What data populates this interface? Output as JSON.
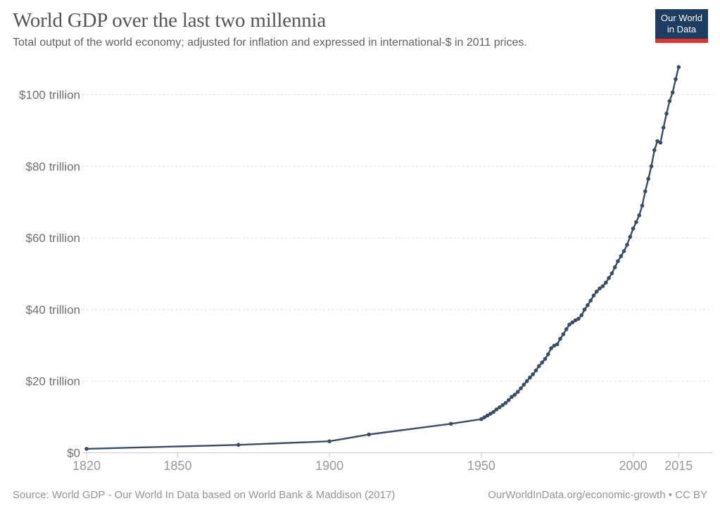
{
  "header": {
    "title": "World GDP over the last two millennia",
    "subtitle": "Total output of the world economy; adjusted for inflation and expressed in international-$ in 2011 prices."
  },
  "logo": {
    "line1": "Our World",
    "line2": "in Data",
    "bg_color": "#1d3d63",
    "bar_color": "#dc352b"
  },
  "footer": {
    "source": "Source: World GDP - Our World In Data based on World Bank & Maddison (2017)",
    "url_label": "OurWorldInData.org/economic-growth",
    "separator": "•",
    "license": "CC BY"
  },
  "chart_data": {
    "type": "line",
    "title": "World GDP over the last two millennia",
    "xlabel": "",
    "ylabel": "",
    "unit": "trillion international-$ in 2011 prices",
    "xlim": [
      1820,
      2015
    ],
    "ylim": [
      0,
      108
    ],
    "grid": "horizontal-dashed",
    "legend": "none",
    "colors": {
      "line": "#3b4c63",
      "gridline": "#dddddd",
      "axis": "#cccccc",
      "y_label": "#707070",
      "x_label": "#999999"
    },
    "x_ticks": [
      {
        "v": 1820,
        "label": "1820"
      },
      {
        "v": 1850,
        "label": "1850"
      },
      {
        "v": 1900,
        "label": "1900"
      },
      {
        "v": 1950,
        "label": "1950"
      },
      {
        "v": 2000,
        "label": "2000"
      },
      {
        "v": 2015,
        "label": "2015"
      }
    ],
    "y_ticks": [
      {
        "v": 0,
        "label": "$0"
      },
      {
        "v": 20,
        "label": "$20 trillion"
      },
      {
        "v": 40,
        "label": "$40 trillion"
      },
      {
        "v": 60,
        "label": "$60 trillion"
      },
      {
        "v": 80,
        "label": "$80 trillion"
      },
      {
        "v": 100,
        "label": "$100 trillion"
      }
    ],
    "series": [
      {
        "name": "World GDP",
        "points": [
          [
            1820,
            1.1
          ],
          [
            1870,
            2.2
          ],
          [
            1900,
            3.2
          ],
          [
            1913,
            5.1
          ],
          [
            1940,
            8.1
          ],
          [
            1950,
            9.4
          ],
          [
            1951,
            9.9
          ],
          [
            1952,
            10.4
          ],
          [
            1953,
            10.9
          ],
          [
            1954,
            11.4
          ],
          [
            1955,
            12.1
          ],
          [
            1956,
            12.7
          ],
          [
            1957,
            13.3
          ],
          [
            1958,
            13.9
          ],
          [
            1959,
            14.7
          ],
          [
            1960,
            15.6
          ],
          [
            1961,
            16.2
          ],
          [
            1962,
            17.0
          ],
          [
            1963,
            18.0
          ],
          [
            1964,
            19.0
          ],
          [
            1965,
            20.0
          ],
          [
            1966,
            21.0
          ],
          [
            1967,
            21.9
          ],
          [
            1968,
            23.0
          ],
          [
            1969,
            24.2
          ],
          [
            1970,
            25.2
          ],
          [
            1971,
            26.2
          ],
          [
            1972,
            27.5
          ],
          [
            1973,
            29.2
          ],
          [
            1974,
            29.9
          ],
          [
            1975,
            30.3
          ],
          [
            1976,
            31.8
          ],
          [
            1977,
            33.1
          ],
          [
            1978,
            34.5
          ],
          [
            1979,
            35.8
          ],
          [
            1980,
            36.4
          ],
          [
            1981,
            37.0
          ],
          [
            1982,
            37.4
          ],
          [
            1983,
            38.4
          ],
          [
            1984,
            40.0
          ],
          [
            1985,
            41.2
          ],
          [
            1986,
            42.5
          ],
          [
            1987,
            43.9
          ],
          [
            1988,
            45.0
          ],
          [
            1989,
            45.9
          ],
          [
            1990,
            46.5
          ],
          [
            1991,
            47.5
          ],
          [
            1992,
            48.8
          ],
          [
            1993,
            50.1
          ],
          [
            1994,
            51.8
          ],
          [
            1995,
            53.5
          ],
          [
            1996,
            54.9
          ],
          [
            1997,
            56.3
          ],
          [
            1998,
            58.1
          ],
          [
            1999,
            60.3
          ],
          [
            2000,
            62.6
          ],
          [
            2001,
            64.4
          ],
          [
            2002,
            66.3
          ],
          [
            2003,
            69.0
          ],
          [
            2004,
            73.0
          ],
          [
            2005,
            76.5
          ],
          [
            2006,
            80.0
          ],
          [
            2007,
            84.5
          ],
          [
            2008,
            87.0
          ],
          [
            2009,
            86.6
          ],
          [
            2010,
            90.8
          ],
          [
            2011,
            94.7
          ],
          [
            2012,
            98.2
          ],
          [
            2013,
            100.6
          ],
          [
            2014,
            104.3
          ],
          [
            2015,
            107.7
          ]
        ]
      }
    ]
  }
}
